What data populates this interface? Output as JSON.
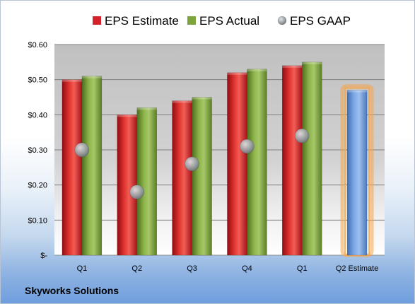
{
  "chart_data": {
    "type": "bar",
    "title": "",
    "categories": [
      "Q1",
      "Q2",
      "Q3",
      "Q4",
      "Q1",
      "Q2 Estimate"
    ],
    "series": [
      {
        "name": "EPS Estimate",
        "values": [
          0.5,
          0.4,
          0.44,
          0.52,
          0.54,
          null
        ],
        "color": "#d32229",
        "mark": "bar"
      },
      {
        "name": "EPS Actual",
        "values": [
          0.51,
          0.42,
          0.45,
          0.53,
          0.55,
          null
        ],
        "color": "#7ea43c",
        "mark": "bar"
      },
      {
        "name": "EPS GAAP",
        "values": [
          0.3,
          0.18,
          0.26,
          0.31,
          0.34,
          null
        ],
        "color": "#9aa0a6",
        "mark": "point"
      },
      {
        "name": "",
        "values": [
          null,
          null,
          null,
          null,
          null,
          0.47
        ],
        "color": "#6f9ede",
        "highlight": "#f5a64a",
        "mark": "bar"
      }
    ],
    "ylim": [
      0,
      0.6
    ],
    "yticks": [
      "$-",
      "$0.10",
      "$0.20",
      "$0.30",
      "$0.40",
      "$0.50",
      "$0.60"
    ],
    "ytick_values": [
      0,
      0.1,
      0.2,
      0.3,
      0.4,
      0.5,
      0.6
    ],
    "grid": true,
    "legend_position": "top",
    "company": "Skyworks Solutions"
  }
}
